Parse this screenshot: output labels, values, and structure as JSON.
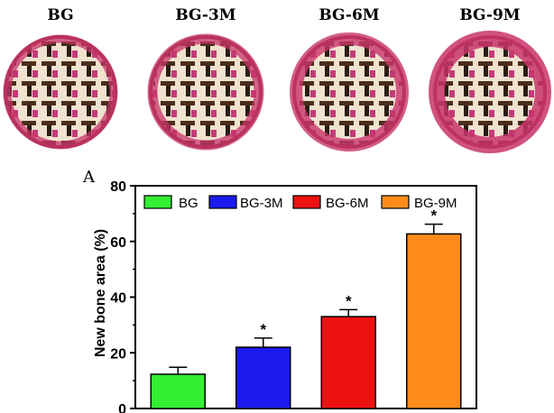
{
  "panels": {
    "samples": [
      {
        "label": "BG"
      },
      {
        "label": "BG-3M"
      },
      {
        "label": "BG-6M"
      },
      {
        "label": "BG-9M"
      }
    ],
    "panel_letter": "A"
  },
  "chart_data": {
    "type": "bar",
    "categories": [
      "BG",
      "BG-3M",
      "BG-6M",
      "BG-9M"
    ],
    "values": [
      12.3,
      22.0,
      33.0,
      62.7
    ],
    "errors": [
      2.5,
      3.3,
      2.5,
      3.5
    ],
    "significance": [
      "",
      "*",
      "*",
      "*"
    ],
    "colors": [
      "#33ee33",
      "#1a1aee",
      "#ee1111",
      "#ff8c1a"
    ],
    "title": "",
    "xlabel": "",
    "ylabel": "New bone area (%)",
    "ylim": [
      0,
      80
    ],
    "yticks": [
      0,
      20,
      40,
      60,
      80
    ],
    "legend": [
      "BG",
      "BG-3M",
      "BG-6M",
      "BG-9M"
    ],
    "legend_position": "top",
    "grid": false
  }
}
